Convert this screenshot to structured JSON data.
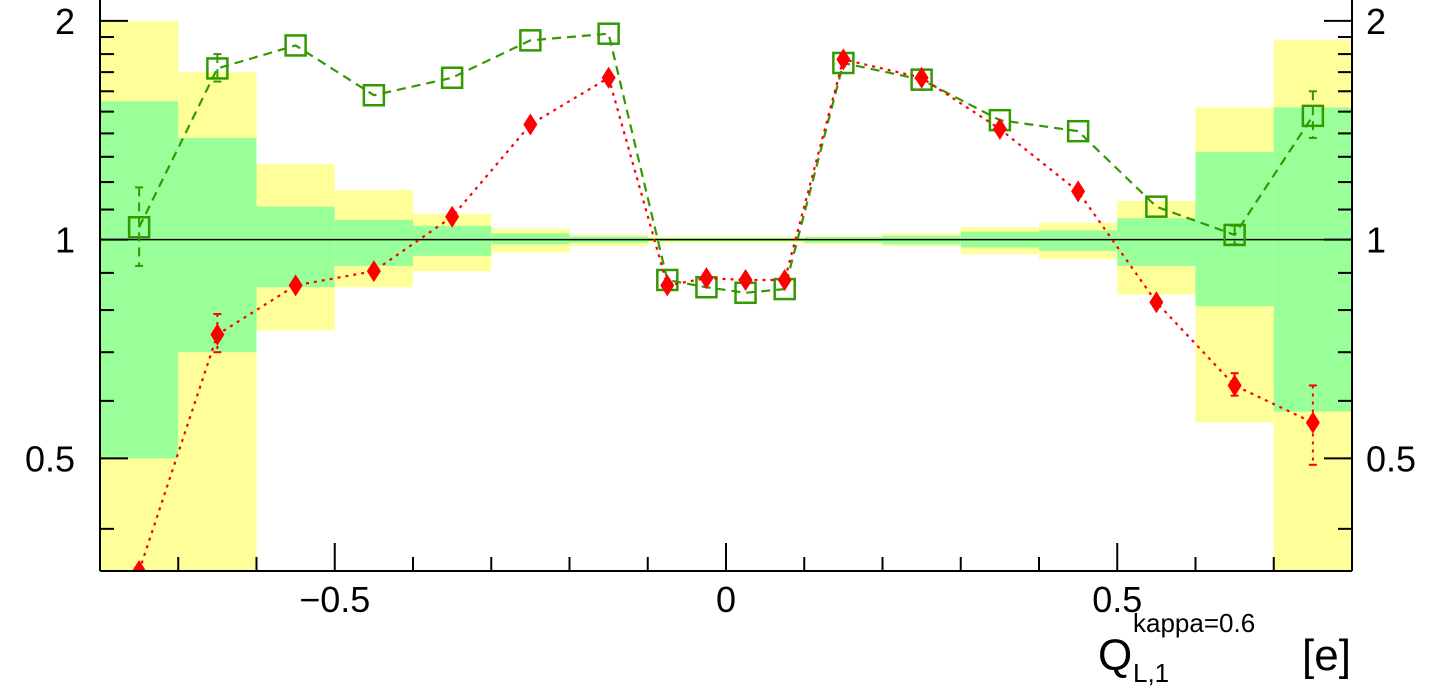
{
  "chart_data": {
    "type": "line",
    "xlim": [
      -0.8,
      0.8
    ],
    "ylim": [
      0.35,
      2.15
    ],
    "y_scale": "log",
    "reference_line": 1,
    "x_ticks": [
      {
        "value": -0.5,
        "label": "−0.5"
      },
      {
        "value": 0,
        "label": "0"
      },
      {
        "value": 0.5,
        "label": "0.5"
      }
    ],
    "y_ticks": [
      {
        "value": 0.5,
        "label": "0.5"
      },
      {
        "value": 1,
        "label": "1"
      },
      {
        "value": 2,
        "label": "2"
      }
    ],
    "xlabel": {
      "main": "Q",
      "sub": "L,1",
      "sup": "kappa=0.6",
      "unit": "[e]"
    },
    "bins": [
      {
        "lo": -0.8,
        "hi": -0.7,
        "green": [
          0.5,
          1.55
        ],
        "yellow": [
          0.35,
          2.0
        ]
      },
      {
        "lo": -0.7,
        "hi": -0.6,
        "green": [
          0.7,
          1.38
        ],
        "yellow": [
          0.35,
          1.7
        ]
      },
      {
        "lo": -0.6,
        "hi": -0.5,
        "green": [
          0.86,
          1.11
        ],
        "yellow": [
          0.75,
          1.27
        ]
      },
      {
        "lo": -0.5,
        "hi": -0.4,
        "green": [
          0.92,
          1.065
        ],
        "yellow": [
          0.86,
          1.17
        ]
      },
      {
        "lo": -0.4,
        "hi": -0.3,
        "green": [
          0.95,
          1.045
        ],
        "yellow": [
          0.905,
          1.085
        ]
      },
      {
        "lo": -0.3,
        "hi": -0.2,
        "green": [
          0.985,
          1.02
        ],
        "yellow": [
          0.96,
          1.035
        ]
      },
      {
        "lo": -0.2,
        "hi": -0.1,
        "green": [
          0.99,
          1.01
        ],
        "yellow": [
          0.98,
          1.015
        ]
      },
      {
        "lo": -0.1,
        "hi": 0.0,
        "green": [
          0.995,
          1.005
        ],
        "yellow": [
          0.99,
          1.01
        ]
      },
      {
        "lo": 0.0,
        "hi": 0.1,
        "green": [
          0.995,
          1.005
        ],
        "yellow": [
          0.99,
          1.01
        ]
      },
      {
        "lo": 0.1,
        "hi": 0.2,
        "green": [
          0.99,
          1.008
        ],
        "yellow": [
          0.985,
          1.012
        ]
      },
      {
        "lo": 0.2,
        "hi": 0.3,
        "green": [
          0.985,
          1.012
        ],
        "yellow": [
          0.98,
          1.02
        ]
      },
      {
        "lo": 0.3,
        "hi": 0.4,
        "green": [
          0.975,
          1.025
        ],
        "yellow": [
          0.955,
          1.04
        ]
      },
      {
        "lo": 0.4,
        "hi": 0.5,
        "green": [
          0.965,
          1.03
        ],
        "yellow": [
          0.94,
          1.055
        ]
      },
      {
        "lo": 0.5,
        "hi": 0.6,
        "green": [
          0.92,
          1.07
        ],
        "yellow": [
          0.84,
          1.13
        ]
      },
      {
        "lo": 0.6,
        "hi": 0.7,
        "green": [
          0.81,
          1.32
        ],
        "yellow": [
          0.56,
          1.52
        ]
      },
      {
        "lo": 0.7,
        "hi": 0.8,
        "green": [
          0.58,
          1.52
        ],
        "yellow": [
          0.35,
          1.88
        ]
      }
    ],
    "series": [
      {
        "marker": "open-square",
        "color": "#339900",
        "line_style": "dashed",
        "points": [
          {
            "x": -0.75,
            "y": 1.04,
            "err": [
              0.92,
              1.18
            ]
          },
          {
            "x": -0.65,
            "y": 1.72,
            "err": [
              1.65,
              1.8
            ]
          },
          {
            "x": -0.55,
            "y": 1.85
          },
          {
            "x": -0.45,
            "y": 1.58
          },
          {
            "x": -0.35,
            "y": 1.67
          },
          {
            "x": -0.25,
            "y": 1.88
          },
          {
            "x": -0.15,
            "y": 1.92
          },
          {
            "x": -0.075,
            "y": 0.88
          },
          {
            "x": -0.025,
            "y": 0.86
          },
          {
            "x": 0.025,
            "y": 0.845
          },
          {
            "x": 0.075,
            "y": 0.855
          },
          {
            "x": 0.15,
            "y": 1.75
          },
          {
            "x": 0.25,
            "y": 1.66
          },
          {
            "x": 0.35,
            "y": 1.46
          },
          {
            "x": 0.45,
            "y": 1.41
          },
          {
            "x": 0.55,
            "y": 1.11
          },
          {
            "x": 0.65,
            "y": 1.015,
            "err": [
              0.985,
              1.045
            ]
          },
          {
            "x": 0.75,
            "y": 1.48,
            "err": [
              1.38,
              1.6
            ]
          }
        ]
      },
      {
        "marker": "filled-diamond",
        "color": "#ff0000",
        "line_style": "dotted",
        "points": [
          {
            "x": -0.75,
            "y": 0.35
          },
          {
            "x": -0.65,
            "y": 0.74,
            "err": [
              0.7,
              0.79
            ]
          },
          {
            "x": -0.55,
            "y": 0.865
          },
          {
            "x": -0.45,
            "y": 0.905
          },
          {
            "x": -0.35,
            "y": 1.075
          },
          {
            "x": -0.25,
            "y": 1.44
          },
          {
            "x": -0.15,
            "y": 1.67
          },
          {
            "x": -0.075,
            "y": 0.865
          },
          {
            "x": -0.025,
            "y": 0.885
          },
          {
            "x": 0.025,
            "y": 0.88
          },
          {
            "x": 0.075,
            "y": 0.88
          },
          {
            "x": 0.15,
            "y": 1.77
          },
          {
            "x": 0.25,
            "y": 1.67
          },
          {
            "x": 0.35,
            "y": 1.42
          },
          {
            "x": 0.45,
            "y": 1.165
          },
          {
            "x": 0.55,
            "y": 0.82
          },
          {
            "x": 0.65,
            "y": 0.63,
            "err": [
              0.61,
              0.655
            ]
          },
          {
            "x": 0.75,
            "y": 0.56,
            "err": [
              0.49,
              0.63
            ]
          }
        ]
      }
    ]
  },
  "colors": {
    "band_green": "#99ff99",
    "band_yellow": "#ffff99",
    "frame": "#000000"
  }
}
